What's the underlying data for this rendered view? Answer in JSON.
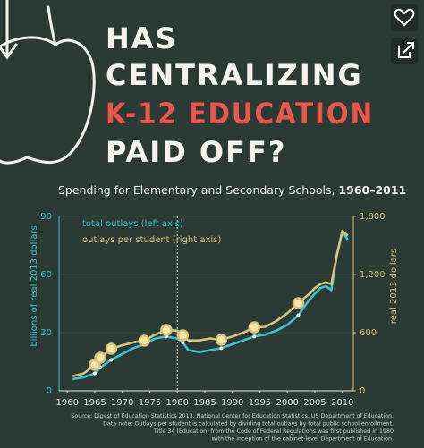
{
  "chart_data": {
    "type": "line",
    "title_lines": [
      "HAS",
      "CENTRALIZING",
      "K-12 EDUCATION",
      "PAID OFF?"
    ],
    "title_colors": [
      "#f4f4ee",
      "#f4f4ee",
      "#e8574a",
      "#f4f4ee"
    ],
    "subtitle": "Spending for Elementary and Secondary Schools, ",
    "subtitle_years": "1960–2011",
    "ylabel": "billions of real  2013 dollars",
    "y2label": "real  2013 dollars",
    "x": [
      1961,
      1963,
      1965,
      1966,
      1968,
      1970,
      1972,
      1974,
      1976,
      1978,
      1980,
      1981,
      1982,
      1984,
      1986,
      1988,
      1990,
      1992,
      1994,
      1996,
      1998,
      2000,
      2002,
      2004,
      2005,
      2006,
      2007,
      2008,
      2009,
      2010,
      2011
    ],
    "series": [
      {
        "name": "total outlays (left axis)",
        "color": "#3fc1cf",
        "axis": "y",
        "values": [
          6,
          7,
          9,
          12,
          16,
          19,
          22,
          24,
          27,
          28,
          27,
          25,
          21,
          20,
          21,
          22,
          24,
          26,
          28,
          29,
          31,
          34,
          39,
          47,
          50,
          53,
          54,
          52,
          70,
          82,
          78
        ]
      },
      {
        "name": "outlays per student (right axis)",
        "color": "#d8c47a",
        "axis": "y2",
        "values": [
          150,
          180,
          268,
          342,
          434,
          470,
          500,
          517,
          580,
          628,
          620,
          572,
          520,
          520,
          540,
          526,
          560,
          600,
          655,
          660,
          720,
          800,
          905,
          1000,
          1060,
          1100,
          1120,
          1100,
          1400,
          1650,
          1600
        ]
      }
    ],
    "marked": [
      false,
      false,
      true,
      true,
      true,
      false,
      false,
      true,
      false,
      true,
      false,
      true,
      false,
      false,
      false,
      true,
      false,
      false,
      true,
      false,
      false,
      false,
      true,
      false,
      false,
      false,
      false,
      false,
      false,
      false,
      false
    ],
    "vline": 1980,
    "xlim": [
      1958.5,
      2012
    ],
    "xticks": [
      1960,
      1965,
      1970,
      1975,
      1980,
      1985,
      1990,
      1995,
      2000,
      2005,
      2010
    ],
    "ylim": [
      0,
      90
    ],
    "yticks": [
      0,
      30,
      60,
      90
    ],
    "y2lim": [
      0,
      1800
    ],
    "y2ticks": [
      0,
      600,
      {
        "value": 1200,
        "label": "1,200"
      },
      {
        "value": 1800,
        "label": "1,800"
      }
    ],
    "grid": true,
    "notes": [
      "Source: Digest of Education Statistics 2013, National Center for Education Statistics, US Department of Education.",
      "Data note: Outlays per student is calculated by dividing total outlays by total public school enrollment.",
      "Title 34 (Education) from the Code of Federal Regulations was first published in 1980",
      "with the inception of the cabinet-level Department of Education."
    ]
  }
}
